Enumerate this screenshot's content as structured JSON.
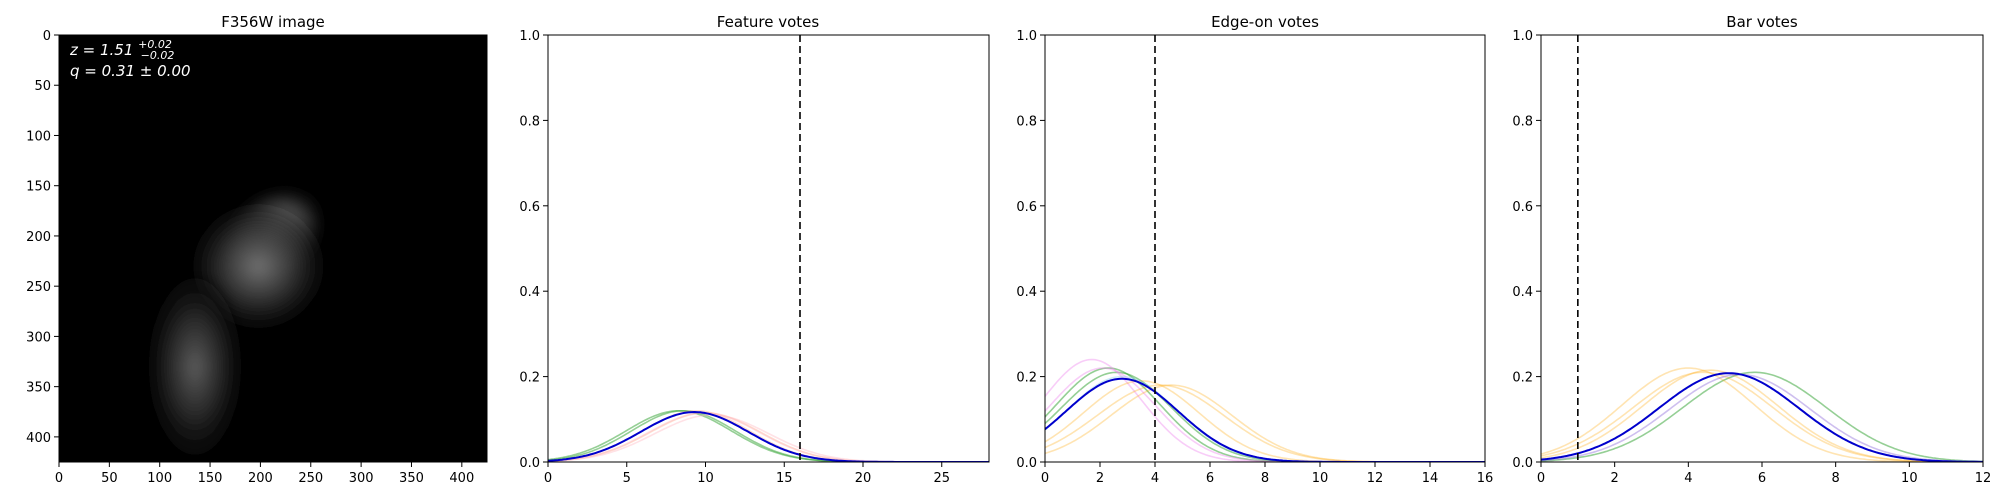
{
  "figure": {
    "panels": [
      {
        "kind": "image",
        "title": "F356W image",
        "xticks": [
          0,
          50,
          100,
          150,
          200,
          250,
          300,
          350,
          400
        ],
        "yticks": [
          0,
          50,
          100,
          150,
          200,
          250,
          300,
          350,
          400
        ],
        "annotations": {
          "z": {
            "prefix": "z = 1.51",
            "sup": "+0.02",
            "sub": "−0.02"
          },
          "q": "q = 0.31 ± 0.00"
        }
      }
    ]
  },
  "chart_data": [
    {
      "type": "image",
      "title": "F356W image",
      "xlim": [
        0,
        425
      ],
      "ylim": [
        425,
        0
      ],
      "xticks": [
        0,
        50,
        100,
        150,
        200,
        250,
        300,
        350,
        400
      ],
      "yticks": [
        0,
        50,
        100,
        150,
        200,
        250,
        300,
        350,
        400
      ],
      "sources": [
        {
          "x": 212,
          "y": 200,
          "peak": 1.0,
          "sx": 32,
          "sy": 24,
          "angle": -40
        },
        {
          "x": 198,
          "y": 230,
          "peak": 0.55,
          "sx": 40,
          "sy": 38,
          "angle": 0
        },
        {
          "x": 135,
          "y": 330,
          "peak": 0.45,
          "sx": 28,
          "sy": 55,
          "angle": 0
        }
      ]
    },
    {
      "type": "line",
      "title": "Feature votes",
      "xlim": [
        0,
        28
      ],
      "ylim": [
        0,
        1.0
      ],
      "xticks": [
        0,
        5,
        10,
        15,
        20,
        25
      ],
      "yticks": [
        0.0,
        0.2,
        0.4,
        0.6,
        0.8,
        1.0
      ],
      "vline": 16,
      "series": [
        {
          "color": "#2ca02c",
          "opacity": 0.5,
          "mu": 8.3,
          "sigma": 3.35,
          "peak": 0.12
        },
        {
          "color": "#2ca02c",
          "opacity": 0.5,
          "mu": 8.6,
          "sigma": 3.3,
          "peak": 0.12
        },
        {
          "color": "#ffa07a",
          "opacity": 0.35,
          "mu": 9.4,
          "sigma": 3.4,
          "peak": 0.12
        },
        {
          "color": "#ffa07a",
          "opacity": 0.35,
          "mu": 10.0,
          "sigma": 3.5,
          "peak": 0.115
        },
        {
          "color": "#ffb6c1",
          "opacity": 0.4,
          "mu": 10.4,
          "sigma": 3.6,
          "peak": 0.11
        },
        {
          "color": "#ffb6c1",
          "opacity": 0.4,
          "mu": 9.9,
          "sigma": 3.5,
          "peak": 0.115
        },
        {
          "color": "#0000cc",
          "opacity": 1.0,
          "mu": 9.3,
          "sigma": 3.4,
          "peak": 0.117,
          "width": 2
        }
      ]
    },
    {
      "type": "line",
      "title": "Edge-on votes",
      "xlim": [
        0,
        16
      ],
      "ylim": [
        0,
        1.0
      ],
      "xticks": [
        0,
        2,
        4,
        6,
        8,
        10,
        12,
        14,
        16
      ],
      "yticks": [
        0.0,
        0.2,
        0.4,
        0.6,
        0.8,
        1.0
      ],
      "vline": 4,
      "series": [
        {
          "color": "#2ca02c",
          "opacity": 0.5,
          "mu": 2.3,
          "sigma": 1.9,
          "peak": 0.22
        },
        {
          "color": "#2ca02c",
          "opacity": 0.5,
          "mu": 2.6,
          "sigma": 2.0,
          "peak": 0.21
        },
        {
          "color": "#ee82ee",
          "opacity": 0.4,
          "mu": 1.7,
          "sigma": 1.8,
          "peak": 0.24
        },
        {
          "color": "#ee82ee",
          "opacity": 0.4,
          "mu": 2.1,
          "sigma": 1.9,
          "peak": 0.22
        },
        {
          "color": "#ffa500",
          "opacity": 0.3,
          "mu": 4.2,
          "sigma": 2.3,
          "peak": 0.18
        },
        {
          "color": "#ffa500",
          "opacity": 0.3,
          "mu": 4.6,
          "sigma": 2.2,
          "peak": 0.18
        },
        {
          "color": "#ffa500",
          "opacity": 0.3,
          "mu": 3.5,
          "sigma": 2.1,
          "peak": 0.19
        },
        {
          "color": "#87ceeb",
          "opacity": 0.4,
          "mu": 2.8,
          "sigma": 2.0,
          "peak": 0.2
        },
        {
          "color": "#0000cc",
          "opacity": 1.0,
          "mu": 2.8,
          "sigma": 2.05,
          "peak": 0.195,
          "width": 2
        }
      ]
    },
    {
      "type": "line",
      "title": "Bar votes",
      "xlim": [
        0,
        12
      ],
      "ylim": [
        0,
        1.0
      ],
      "xticks": [
        0,
        2,
        4,
        6,
        8,
        10,
        12
      ],
      "yticks": [
        0.0,
        0.2,
        0.4,
        0.6,
        0.8,
        1.0
      ],
      "vline": 1,
      "series": [
        {
          "color": "#2ca02c",
          "opacity": 0.5,
          "mu": 5.8,
          "sigma": 1.95,
          "peak": 0.21
        },
        {
          "color": "#ffa500",
          "opacity": 0.3,
          "mu": 4.0,
          "sigma": 1.8,
          "peak": 0.22
        },
        {
          "color": "#ffa500",
          "opacity": 0.3,
          "mu": 4.6,
          "sigma": 1.85,
          "peak": 0.215
        },
        {
          "color": "#ffa500",
          "opacity": 0.3,
          "mu": 4.4,
          "sigma": 1.9,
          "peak": 0.21
        },
        {
          "color": "#9370db",
          "opacity": 0.45,
          "mu": 5.4,
          "sigma": 1.9,
          "peak": 0.205
        },
        {
          "color": "#0000cc",
          "opacity": 1.0,
          "mu": 5.1,
          "sigma": 1.9,
          "peak": 0.208,
          "width": 2
        }
      ]
    }
  ]
}
